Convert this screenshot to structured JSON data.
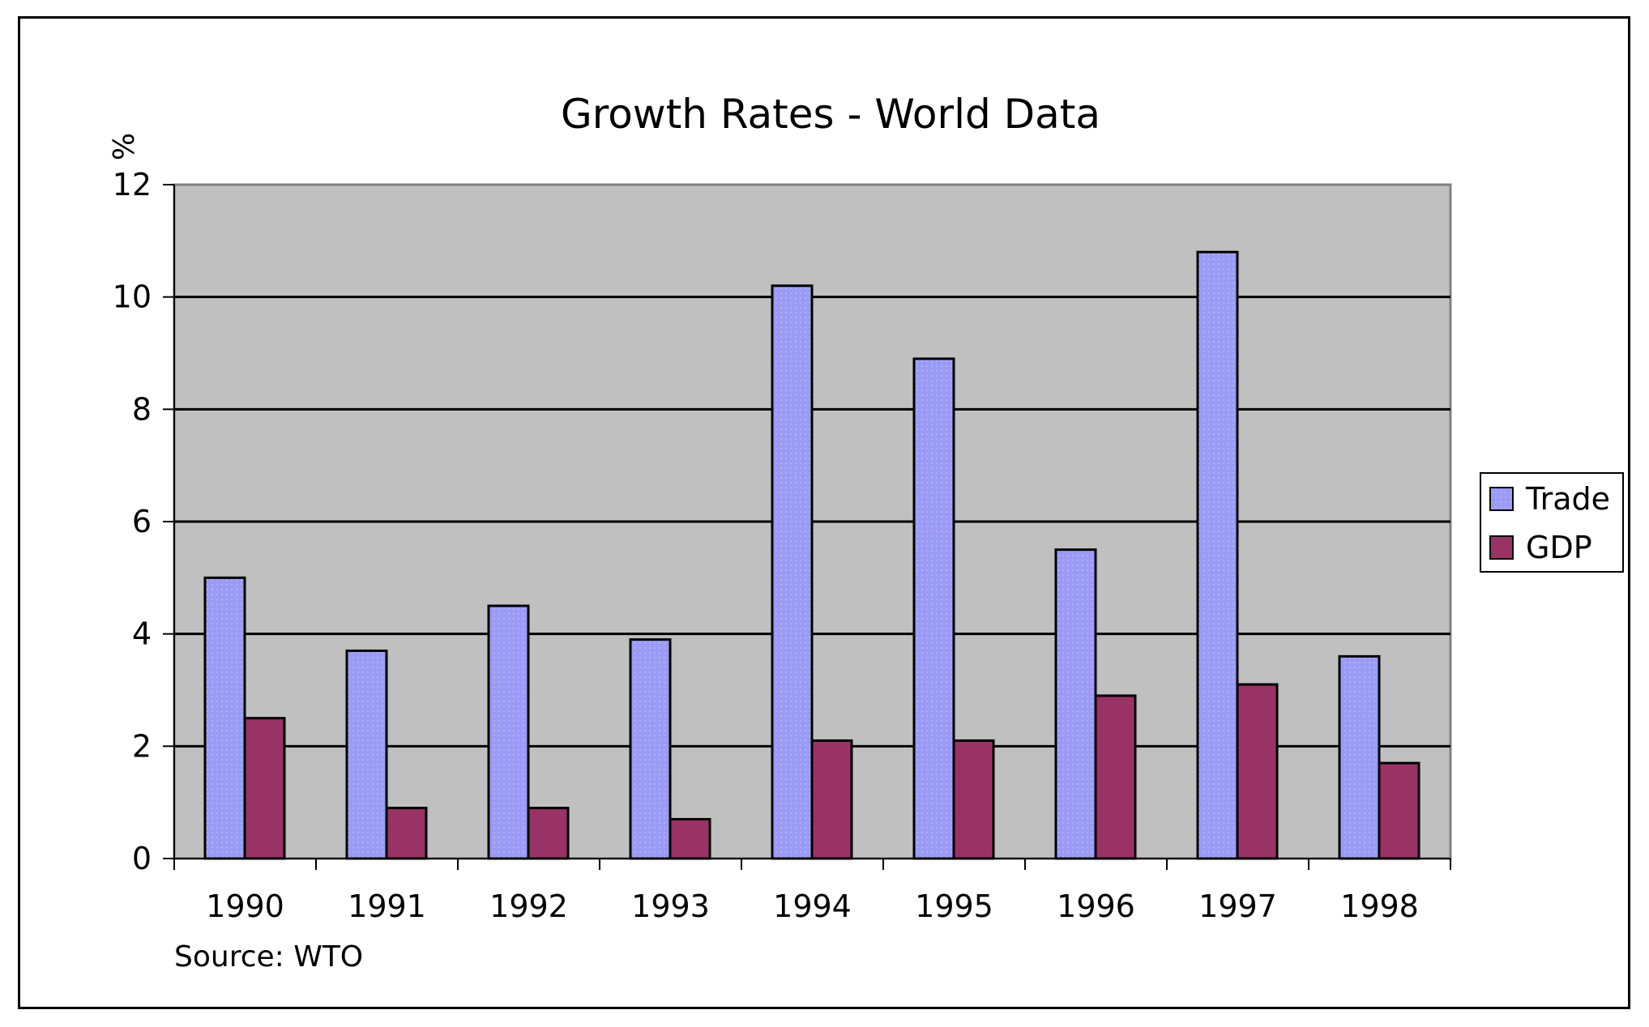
{
  "chart_data": {
    "type": "bar",
    "title": "Growth Rates - World Data",
    "ylabel": "%",
    "xlabel": "",
    "categories": [
      "1990",
      "1991",
      "1992",
      "1993",
      "1994",
      "1995",
      "1996",
      "1997",
      "1998"
    ],
    "series": [
      {
        "name": "Trade",
        "color": "#9b9bf5",
        "values": [
          5.0,
          3.7,
          4.5,
          3.9,
          10.2,
          8.9,
          5.5,
          10.8,
          3.6
        ]
      },
      {
        "name": "GDP",
        "color": "#993366",
        "values": [
          2.5,
          0.9,
          0.9,
          0.7,
          2.1,
          2.1,
          2.9,
          3.1,
          1.7
        ]
      }
    ],
    "ylim": [
      0,
      12
    ],
    "yticks": [
      "0",
      "2",
      "4",
      "6",
      "8",
      "10",
      "12"
    ],
    "grid": true,
    "legend": "right",
    "plot_background": "#c0c0c0",
    "source_note": "Source: WTO"
  }
}
